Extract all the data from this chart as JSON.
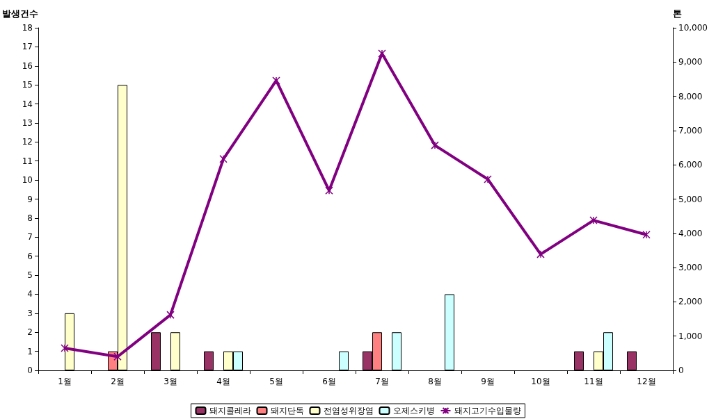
{
  "chart_data": {
    "type": "bar",
    "categories": [
      "1월",
      "2월",
      "3월",
      "4월",
      "5월",
      "6월",
      "7월",
      "8월",
      "9월",
      "10월",
      "11월",
      "12월"
    ],
    "ylabel": "발생건수",
    "y2label": "톤",
    "ylim": [
      0,
      18
    ],
    "yticks": [
      0,
      1,
      2,
      3,
      4,
      5,
      6,
      7,
      8,
      9,
      10,
      11,
      12,
      13,
      14,
      15,
      16,
      17,
      18
    ],
    "y2lim": [
      0,
      10000
    ],
    "y2ticks": [
      0,
      {
        "value": 1000,
        "label": "1,000"
      },
      {
        "value": 2000,
        "label": "2,000"
      },
      {
        "value": 3000,
        "label": "3,000"
      },
      {
        "value": 4000,
        "label": "4,000"
      },
      {
        "value": 5000,
        "label": "5,000"
      },
      {
        "value": 6000,
        "label": "6,000"
      },
      {
        "value": 7000,
        "label": "7,000"
      },
      {
        "value": 8000,
        "label": "8,000"
      },
      {
        "value": 9000,
        "label": "9,000"
      },
      {
        "value": 10000,
        "label": "10,000"
      }
    ],
    "grid": false,
    "legend": "bottom",
    "series": [
      {
        "name": "돼지콜레라",
        "color": "#993366",
        "values": [
          null,
          null,
          2,
          1,
          null,
          null,
          1,
          null,
          null,
          null,
          1,
          1
        ]
      },
      {
        "name": "돼지단독",
        "color": "#ff8080",
        "values": [
          null,
          1,
          null,
          null,
          null,
          null,
          2,
          null,
          null,
          null,
          null,
          null
        ]
      },
      {
        "name": "전염성위장염",
        "color": "#ffffcc",
        "values": [
          3,
          15,
          2,
          1,
          null,
          null,
          null,
          null,
          null,
          null,
          1,
          null
        ]
      },
      {
        "name": "오제스키병",
        "color": "#ccffff",
        "values": [
          null,
          null,
          null,
          1,
          null,
          1,
          2,
          4,
          null,
          null,
          2,
          null
        ]
      },
      {
        "name": "돼지고기수입물량",
        "type": "line",
        "axis": "y2",
        "color": "#800080",
        "marker": "cross",
        "line_style": "solid",
        "values": [
          650,
          400,
          1620,
          6170,
          8460,
          5250,
          9250,
          6570,
          5580,
          3390,
          4380,
          3960
        ]
      }
    ]
  }
}
